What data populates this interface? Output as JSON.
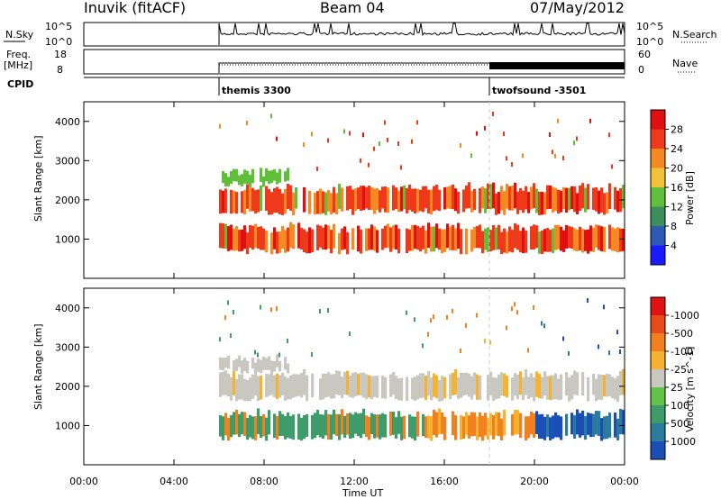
{
  "header": {
    "station": "Inuvik (fitACF)",
    "beam": "Beam 04",
    "date": "07/May/2012"
  },
  "panels": {
    "nsky_label": "N.Sky",
    "nsearch_label": "N.Search",
    "noise_ticks_left": [
      "10^5",
      "10^0"
    ],
    "noise_ticks_right": [
      "10^5",
      "10^0"
    ],
    "freq_label_line1": "Freq.",
    "freq_label_line2": "[MHz]",
    "freq_ticks": [
      "18",
      "8"
    ],
    "nave_label": "Nave",
    "nave_ticks": [
      "60",
      "0"
    ],
    "cpid_label": "CPID",
    "cpid_modes": [
      {
        "name": "themis 3300",
        "start_hour": 6,
        "end_hour": 18
      },
      {
        "name": "twofsound -3501",
        "start_hour": 18,
        "end_hour": 24
      }
    ]
  },
  "axes": {
    "x_title": "Time UT",
    "x_ticks": [
      "00:00",
      "04:00",
      "08:00",
      "12:00",
      "16:00",
      "20:00",
      "00:00"
    ],
    "y_title": "Slant Range [km]",
    "y_ticks": [
      "1000",
      "2000",
      "3000",
      "4000"
    ]
  },
  "chart_data": [
    {
      "type": "heatmap",
      "title": "",
      "xlabel": "Time UT",
      "ylabel": "Slant Range [km]",
      "xlim": [
        0,
        24
      ],
      "ylim": [
        0,
        4500
      ],
      "colorbar": {
        "label": "Power [dB]",
        "ticks": [
          "4",
          "8",
          "12",
          "16",
          "20",
          "24",
          "28"
        ],
        "colors": [
          "#1a1aff",
          "#2d5ab4",
          "#3c8f5a",
          "#5fbf3a",
          "#f2c23a",
          "#f58a22",
          "#ee3a1a",
          "#e01010"
        ]
      },
      "bands": [
        {
          "range_km": [
            700,
            1300
          ],
          "start_hour": 6,
          "end_hour": 24,
          "level": "high"
        },
        {
          "range_km": [
            1700,
            2300
          ],
          "start_hour": 6,
          "end_hour": 24,
          "level": "high"
        },
        {
          "range_km": [
            2400,
            2700
          ],
          "start_hour": 6,
          "end_hour": 9,
          "level": "low"
        }
      ]
    },
    {
      "type": "heatmap",
      "title": "",
      "xlabel": "Time UT",
      "ylabel": "Slant Range [km]",
      "xlim": [
        0,
        24
      ],
      "ylim": [
        0,
        4500
      ],
      "colorbar": {
        "label": "Velocity [m s^-1]",
        "ticks": [
          "1000",
          "500",
          "100",
          "25",
          "-25",
          "-100",
          "-500",
          "-1000"
        ],
        "colors": [
          "#1b4fb8",
          "#2b7c9c",
          "#3e9c6a",
          "#62c24a",
          "#c8c8c0",
          "#f5b330",
          "#f3801e",
          "#ea4a1a",
          "#e01212"
        ]
      }
    }
  ]
}
